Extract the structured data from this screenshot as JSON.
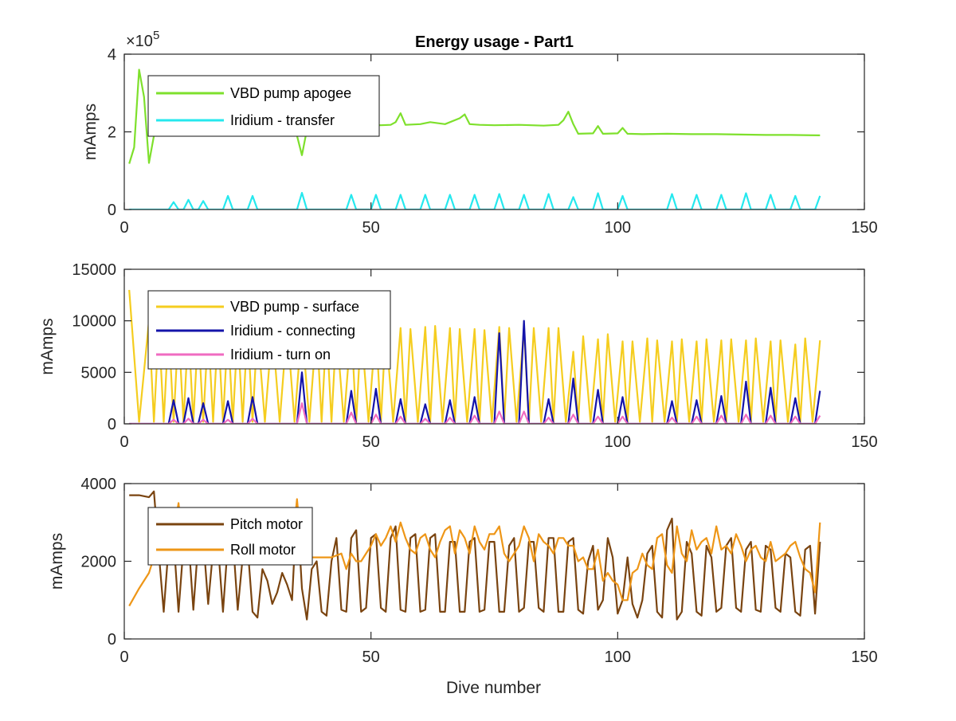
{
  "figure_title": "Energy usage - Part1",
  "xlabel": "Dive number",
  "colors": {
    "axis": "#262626",
    "vbd_apogee": "#7ee02c",
    "iridium_transfer": "#26e8ee",
    "vbd_surface": "#f5cd1f",
    "iridium_connecting": "#1414aa",
    "iridium_turn_on": "#f06bc1",
    "pitch_motor": "#7a4410",
    "roll_motor": "#ee9617"
  },
  "chart_data": [
    {
      "type": "line",
      "title": "Energy usage - Part1",
      "ylabel": "mAmps",
      "y_exponent_label": "×10",
      "y_exponent": "5",
      "xlim": [
        0,
        150
      ],
      "ylim": [
        0,
        400000
      ],
      "x_ticks": [
        0,
        50,
        100,
        150
      ],
      "x_tick_labels": [
        "0",
        "50",
        "100",
        "150"
      ],
      "y_ticks": [
        0,
        200000,
        400000
      ],
      "y_tick_labels": [
        "0",
        "2",
        "4"
      ],
      "legend_position": "top-left",
      "series": [
        {
          "name": "VBD pump apogee",
          "color_key": "vbd_apogee",
          "x": [
            1,
            2,
            3,
            4,
            5,
            6,
            7,
            10,
            15,
            20,
            25,
            30,
            34,
            35,
            36,
            37,
            38,
            40,
            45,
            50,
            52,
            54,
            55,
            56,
            57,
            60,
            62,
            65,
            68,
            69,
            70,
            72,
            75,
            80,
            85,
            88,
            89,
            90,
            91,
            92,
            95,
            96,
            97,
            100,
            101,
            102,
            105,
            110,
            115,
            120,
            125,
            130,
            135,
            141
          ],
          "y": [
            118000,
            160000,
            360000,
            290000,
            120000,
            190000,
            200000,
            205000,
            208000,
            210000,
            212000,
            213000,
            215000,
            190000,
            140000,
            205000,
            215000,
            216000,
            217000,
            218000,
            217000,
            218000,
            225000,
            248000,
            218000,
            220000,
            225000,
            220000,
            235000,
            245000,
            220000,
            218000,
            217000,
            218000,
            216000,
            218000,
            230000,
            252000,
            220000,
            195000,
            196000,
            215000,
            195000,
            196000,
            210000,
            195000,
            194000,
            195000,
            194000,
            194000,
            193000,
            192000,
            192000,
            191000
          ]
        },
        {
          "name": "Iridium - transfer",
          "color_key": "iridium_transfer",
          "peak_x": [
            10,
            13,
            16,
            21,
            26,
            36,
            46,
            51,
            56,
            61,
            66,
            71,
            76,
            81,
            86,
            91,
            96,
            101,
            111,
            116,
            121,
            126,
            131,
            136,
            141
          ],
          "peak_y": [
            19000,
            25000,
            22000,
            35000,
            35000,
            43000,
            38000,
            38000,
            38000,
            38000,
            38000,
            38000,
            40000,
            38000,
            40000,
            32000,
            42000,
            35000,
            40000,
            38000,
            38000,
            42000,
            38000,
            35000,
            35000
          ],
          "baseline": 0
        }
      ]
    },
    {
      "type": "line",
      "ylabel": "mAmps",
      "xlim": [
        0,
        150
      ],
      "ylim": [
        0,
        15000
      ],
      "x_ticks": [
        0,
        50,
        100,
        150
      ],
      "x_tick_labels": [
        "0",
        "50",
        "100",
        "150"
      ],
      "y_ticks": [
        0,
        5000,
        10000,
        15000
      ],
      "y_tick_labels": [
        "0",
        "5000",
        "10000",
        "15000"
      ],
      "legend_position": "top-left",
      "series": [
        {
          "name": "VBD pump - surface",
          "color_key": "vbd_surface",
          "peak_x": [
            1,
            5,
            7,
            9,
            11,
            13,
            15,
            17,
            19,
            21,
            23,
            25,
            27,
            30,
            33,
            36,
            39,
            41,
            43,
            46,
            48,
            51,
            53,
            56,
            58,
            61,
            63,
            66,
            68,
            71,
            73,
            76,
            78,
            81,
            83,
            86,
            88,
            91,
            93,
            96,
            98,
            101,
            103,
            106,
            108,
            111,
            113,
            116,
            118,
            121,
            123,
            126,
            128,
            131,
            133,
            136,
            138,
            141
          ],
          "peak_y": [
            13000,
            10000,
            9600,
            9500,
            9400,
            9300,
            9300,
            9200,
            9400,
            9300,
            9200,
            9500,
            9300,
            9400,
            9500,
            9600,
            9500,
            9400,
            9300,
            9500,
            9400,
            9400,
            9300,
            9300,
            9200,
            9400,
            9500,
            9300,
            9200,
            9200,
            9100,
            9400,
            9300,
            9200,
            9300,
            9300,
            9300,
            7000,
            8500,
            8200,
            8700,
            8000,
            8000,
            8300,
            8100,
            8000,
            8200,
            8000,
            8200,
            8100,
            8200,
            8100,
            8300,
            8000,
            8100,
            7700,
            8300,
            8100
          ],
          "trough_y": 200
        },
        {
          "name": "Iridium - connecting",
          "color_key": "iridium_connecting",
          "peak_x": [
            10,
            13,
            16,
            21,
            26,
            36,
            46,
            51,
            56,
            61,
            66,
            71,
            76,
            81,
            86,
            91,
            96,
            101,
            111,
            116,
            121,
            126,
            131,
            136,
            141
          ],
          "peak_y": [
            2300,
            2500,
            2000,
            2200,
            2600,
            5000,
            3200,
            3400,
            2400,
            1900,
            2300,
            2600,
            8800,
            10000,
            2400,
            4400,
            3300,
            2600,
            2200,
            2300,
            2700,
            4100,
            3500,
            2500,
            3200
          ],
          "baseline": 0
        },
        {
          "name": "Iridium - turn on",
          "color_key": "iridium_turn_on",
          "peak_x": [
            10,
            13,
            16,
            21,
            26,
            36,
            46,
            51,
            56,
            61,
            66,
            71,
            76,
            81,
            86,
            91,
            96,
            101,
            111,
            116,
            121,
            126,
            131,
            136,
            141
          ],
          "peak_y": [
            400,
            500,
            400,
            400,
            500,
            2000,
            1100,
            900,
            700,
            500,
            600,
            800,
            1200,
            1200,
            600,
            900,
            700,
            700,
            600,
            700,
            800,
            900,
            800,
            700,
            800
          ],
          "baseline": 0
        }
      ]
    },
    {
      "type": "line",
      "ylabel": "mAmps",
      "xlabel": "Dive number",
      "xlim": [
        0,
        150
      ],
      "ylim": [
        0,
        4000
      ],
      "x_ticks": [
        0,
        50,
        100,
        150
      ],
      "x_tick_labels": [
        "0",
        "50",
        "100",
        "150"
      ],
      "y_ticks": [
        0,
        2000,
        4000
      ],
      "y_tick_labels": [
        "0",
        "2000",
        "4000"
      ],
      "legend_position": "top-left",
      "series": [
        {
          "name": "Pitch motor",
          "color_key": "pitch_motor",
          "x": [
            1,
            3,
            5,
            6,
            7,
            8,
            9,
            10,
            11,
            12,
            13,
            14,
            15,
            16,
            17,
            18,
            19,
            20,
            21,
            22,
            23,
            24,
            25,
            26,
            27,
            28,
            29,
            30,
            31,
            32,
            33,
            34,
            35,
            36,
            37,
            38,
            39,
            40,
            41,
            42,
            43,
            44,
            45,
            46,
            47,
            48,
            49,
            50,
            51,
            52,
            53,
            54,
            55,
            56,
            57,
            58,
            59,
            60,
            61,
            62,
            63,
            64,
            65,
            66,
            67,
            68,
            69,
            70,
            71,
            72,
            73,
            74,
            75,
            76,
            77,
            78,
            79,
            80,
            81,
            82,
            83,
            84,
            85,
            86,
            87,
            88,
            89,
            90,
            91,
            92,
            93,
            94,
            95,
            96,
            97,
            98,
            99,
            100,
            101,
            102,
            103,
            104,
            105,
            106,
            107,
            108,
            109,
            110,
            111,
            112,
            113,
            114,
            115,
            116,
            117,
            118,
            119,
            120,
            121,
            122,
            123,
            124,
            125,
            126,
            127,
            128,
            129,
            130,
            131,
            132,
            133,
            134,
            135,
            136,
            137,
            138,
            139,
            140,
            141
          ],
          "y": [
            3700,
            3700,
            3650,
            3800,
            2200,
            700,
            2400,
            2600,
            700,
            2400,
            2600,
            750,
            2500,
            2600,
            900,
            2300,
            2400,
            700,
            2500,
            2600,
            750,
            2100,
            2400,
            700,
            550,
            1800,
            1500,
            900,
            1200,
            1700,
            1400,
            1000,
            3500,
            1300,
            500,
            1800,
            2000,
            700,
            600,
            2000,
            2600,
            750,
            700,
            2600,
            2800,
            700,
            800,
            2600,
            2700,
            800,
            700,
            2600,
            2900,
            750,
            700,
            2600,
            2700,
            700,
            750,
            2600,
            2700,
            700,
            700,
            2500,
            2500,
            700,
            700,
            2500,
            2600,
            700,
            750,
            2500,
            2500,
            700,
            700,
            2400,
            2600,
            700,
            800,
            2500,
            2500,
            800,
            700,
            2600,
            2600,
            700,
            700,
            2500,
            2600,
            750,
            650,
            2000,
            2400,
            750,
            1000,
            2600,
            2100,
            650,
            1000,
            2100,
            900,
            550,
            1000,
            2200,
            2400,
            700,
            550,
            2800,
            3100,
            500,
            700,
            2500,
            2200,
            700,
            600,
            2400,
            2100,
            700,
            800,
            2400,
            2600,
            800,
            700,
            2300,
            2500,
            750,
            700,
            2400,
            2300,
            800,
            700,
            2200,
            2100,
            700,
            600,
            2300,
            2400,
            650,
            2500
          ]
        },
        {
          "name": "Roll motor",
          "color_key": "roll_motor",
          "x": [
            1,
            3,
            5,
            6,
            8,
            10,
            11,
            12,
            14,
            16,
            18,
            20,
            22,
            24,
            26,
            28,
            30,
            32,
            34,
            35,
            36,
            38,
            40,
            42,
            44,
            45,
            46,
            47,
            48,
            50,
            51,
            52,
            53,
            54,
            55,
            56,
            57,
            58,
            59,
            60,
            61,
            62,
            63,
            64,
            65,
            66,
            67,
            68,
            69,
            70,
            71,
            72,
            73,
            74,
            75,
            76,
            77,
            78,
            79,
            80,
            81,
            82,
            83,
            84,
            85,
            86,
            87,
            88,
            89,
            90,
            91,
            92,
            93,
            94,
            95,
            96,
            97,
            98,
            99,
            100,
            101,
            102,
            103,
            104,
            105,
            106,
            107,
            108,
            109,
            110,
            111,
            112,
            113,
            114,
            115,
            116,
            117,
            118,
            119,
            120,
            121,
            122,
            123,
            124,
            125,
            126,
            127,
            128,
            129,
            130,
            131,
            132,
            133,
            134,
            135,
            136,
            137,
            138,
            139,
            140,
            141
          ],
          "y": [
            850,
            1300,
            1700,
            2100,
            2500,
            2700,
            3500,
            2300,
            2400,
            2300,
            2200,
            2300,
            2100,
            2200,
            2200,
            2300,
            2300,
            2200,
            2300,
            3600,
            2200,
            2100,
            2100,
            2100,
            2200,
            1800,
            2200,
            2000,
            2000,
            2400,
            2700,
            2400,
            2600,
            2900,
            2500,
            3000,
            2600,
            2300,
            2200,
            2600,
            2700,
            2300,
            2100,
            2500,
            2800,
            2900,
            2200,
            2800,
            2600,
            2200,
            2900,
            2500,
            2300,
            2700,
            2700,
            2900,
            2200,
            2000,
            2200,
            2400,
            2900,
            2600,
            2000,
            2700,
            2500,
            2400,
            2200,
            2600,
            2600,
            2400,
            2400,
            2000,
            2100,
            1800,
            1800,
            2300,
            1500,
            1700,
            1500,
            1400,
            1000,
            1000,
            1700,
            1800,
            2200,
            1900,
            1800,
            2600,
            2700,
            1900,
            1700,
            2900,
            2200,
            2000,
            2800,
            2300,
            2500,
            2600,
            2200,
            2900,
            2300,
            2400,
            2200,
            2700,
            2400,
            2000,
            2300,
            2400,
            2100,
            2000,
            2500,
            2000,
            2100,
            2200,
            2400,
            2500,
            2100,
            1800,
            1700,
            1200,
            3000
          ]
        }
      ]
    }
  ]
}
